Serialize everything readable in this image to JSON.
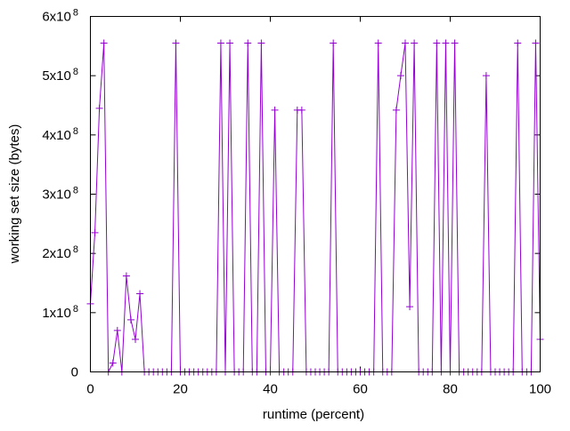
{
  "chart_data": {
    "type": "line",
    "title": "",
    "xlabel": "runtime (percent)",
    "ylabel": "working set size (bytes)",
    "xlim": [
      0,
      100
    ],
    "ylim": [
      0,
      600000000
    ],
    "grid": false,
    "legend": "none",
    "color": "#9400d3",
    "x_ticks": [
      0,
      20,
      40,
      60,
      80,
      100
    ],
    "x_tick_labels": [
      "0",
      "20",
      "40",
      "60",
      "80",
      "100"
    ],
    "y_ticks": [
      0,
      100000000,
      200000000,
      300000000,
      400000000,
      500000000,
      600000000
    ],
    "y_tick_labels": [
      {
        "mantissa": "0",
        "exp": ""
      },
      {
        "mantissa": "1x10",
        "exp": "8"
      },
      {
        "mantissa": "2x10",
        "exp": "8"
      },
      {
        "mantissa": "3x10",
        "exp": "8"
      },
      {
        "mantissa": "4x10",
        "exp": "8"
      },
      {
        "mantissa": "5x10",
        "exp": "8"
      },
      {
        "mantissa": "6x10",
        "exp": "8"
      }
    ],
    "series": [
      {
        "name": "working set",
        "x": [
          0,
          1,
          2,
          3,
          4,
          5,
          6,
          7,
          8,
          9,
          10,
          11,
          12,
          13,
          14,
          15,
          16,
          17,
          18,
          19,
          20,
          21,
          22,
          23,
          24,
          25,
          26,
          27,
          28,
          29,
          30,
          31,
          32,
          33,
          34,
          35,
          36,
          37,
          38,
          39,
          40,
          41,
          42,
          43,
          44,
          45,
          46,
          47,
          48,
          49,
          50,
          51,
          52,
          53,
          54,
          55,
          56,
          57,
          58,
          59,
          60,
          61,
          62,
          63,
          64,
          65,
          66,
          67,
          68,
          69,
          70,
          71,
          72,
          73,
          74,
          75,
          76,
          77,
          78,
          79,
          80,
          81,
          82,
          83,
          84,
          85,
          86,
          87,
          88,
          89,
          90,
          91,
          92,
          93,
          94,
          95,
          96,
          97,
          98,
          99,
          100
        ],
        "values": [
          115000000,
          235000000,
          445000000,
          555000000,
          0,
          15000000,
          70000000,
          0,
          162000000,
          88000000,
          55000000,
          132000000,
          0,
          0,
          0,
          0,
          0,
          0,
          0,
          555000000,
          0,
          0,
          0,
          0,
          0,
          0,
          0,
          0,
          0,
          555000000,
          0,
          555000000,
          0,
          0,
          0,
          555000000,
          0,
          0,
          555000000,
          0,
          0,
          442000000,
          0,
          0,
          0,
          0,
          442000000,
          442000000,
          0,
          0,
          0,
          0,
          0,
          0,
          555000000,
          0,
          0,
          0,
          0,
          0,
          0,
          0,
          0,
          0,
          555000000,
          0,
          0,
          0,
          442000000,
          500000000,
          555000000,
          110000000,
          555000000,
          0,
          0,
          0,
          0,
          555000000,
          0,
          555000000,
          0,
          555000000,
          0,
          0,
          0,
          0,
          0,
          0,
          500000000,
          0,
          0,
          0,
          0,
          0,
          0,
          555000000,
          0,
          0,
          0,
          555000000,
          55000000
        ]
      }
    ]
  }
}
